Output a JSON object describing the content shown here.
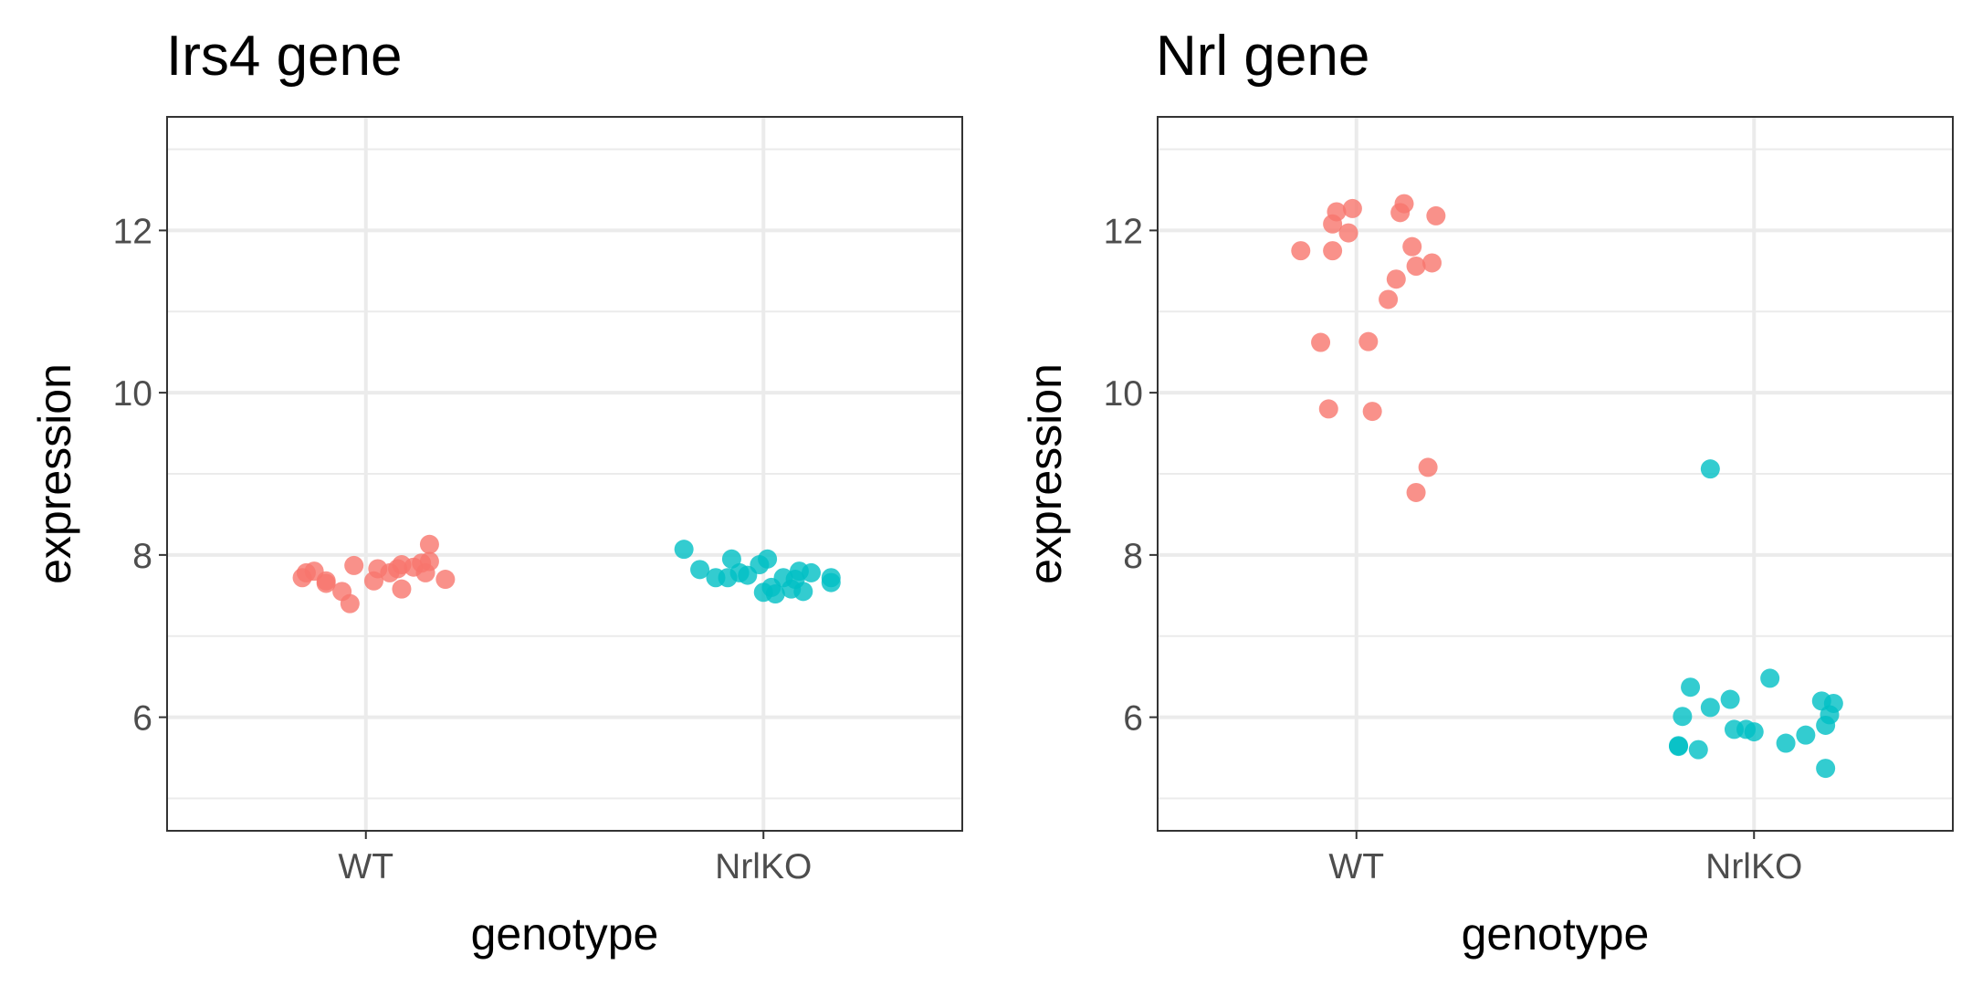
{
  "chart_data": [
    {
      "type": "scatter",
      "title": "Irs4 gene",
      "xlabel": "genotype",
      "ylabel": "expression",
      "categories": [
        "WT",
        "NrlKO"
      ],
      "ylim": [
        4.6,
        13.4
      ],
      "yticks": [
        6,
        8,
        10,
        12
      ],
      "grid": true,
      "legend": "none",
      "series": [
        {
          "category": "WT",
          "color": "#F8766D",
          "points": [
            {
              "x": -0.16,
              "y": 7.72
            },
            {
              "x": -0.15,
              "y": 7.78
            },
            {
              "x": -0.13,
              "y": 7.8
            },
            {
              "x": -0.1,
              "y": 7.65
            },
            {
              "x": -0.1,
              "y": 7.68
            },
            {
              "x": -0.06,
              "y": 7.55
            },
            {
              "x": -0.04,
              "y": 7.4
            },
            {
              "x": -0.03,
              "y": 7.87
            },
            {
              "x": 0.02,
              "y": 7.68
            },
            {
              "x": 0.03,
              "y": 7.83
            },
            {
              "x": 0.06,
              "y": 7.78
            },
            {
              "x": 0.08,
              "y": 7.83
            },
            {
              "x": 0.09,
              "y": 7.88
            },
            {
              "x": 0.09,
              "y": 7.58
            },
            {
              "x": 0.12,
              "y": 7.85
            },
            {
              "x": 0.14,
              "y": 7.9
            },
            {
              "x": 0.15,
              "y": 7.78
            },
            {
              "x": 0.16,
              "y": 7.92
            },
            {
              "x": 0.16,
              "y": 8.13
            },
            {
              "x": 0.2,
              "y": 7.7
            }
          ]
        },
        {
          "category": "NrlKO",
          "color": "#00BFC4",
          "points": [
            {
              "x": -0.2,
              "y": 8.07
            },
            {
              "x": -0.16,
              "y": 7.82
            },
            {
              "x": -0.12,
              "y": 7.72
            },
            {
              "x": -0.09,
              "y": 7.72
            },
            {
              "x": -0.08,
              "y": 7.95
            },
            {
              "x": -0.06,
              "y": 7.78
            },
            {
              "x": -0.04,
              "y": 7.75
            },
            {
              "x": -0.01,
              "y": 7.88
            },
            {
              "x": 0.0,
              "y": 7.54
            },
            {
              "x": 0.01,
              "y": 7.95
            },
            {
              "x": 0.02,
              "y": 7.6
            },
            {
              "x": 0.03,
              "y": 7.52
            },
            {
              "x": 0.05,
              "y": 7.72
            },
            {
              "x": 0.07,
              "y": 7.58
            },
            {
              "x": 0.08,
              "y": 7.7
            },
            {
              "x": 0.09,
              "y": 7.8
            },
            {
              "x": 0.1,
              "y": 7.55
            },
            {
              "x": 0.12,
              "y": 7.78
            },
            {
              "x": 0.17,
              "y": 7.72
            },
            {
              "x": 0.17,
              "y": 7.66
            }
          ]
        }
      ]
    },
    {
      "type": "scatter",
      "title": "Nrl gene",
      "xlabel": "genotype",
      "ylabel": "expression",
      "categories": [
        "WT",
        "NrlKO"
      ],
      "ylim": [
        4.6,
        13.4
      ],
      "yticks": [
        6,
        8,
        10,
        12
      ],
      "grid": true,
      "legend": "none",
      "series": [
        {
          "category": "WT",
          "color": "#F8766D",
          "points": [
            {
              "x": -0.14,
              "y": 11.75
            },
            {
              "x": -0.09,
              "y": 10.62
            },
            {
              "x": -0.07,
              "y": 9.8
            },
            {
              "x": -0.06,
              "y": 11.75
            },
            {
              "x": -0.06,
              "y": 12.08
            },
            {
              "x": -0.05,
              "y": 12.23
            },
            {
              "x": -0.02,
              "y": 11.97
            },
            {
              "x": -0.01,
              "y": 12.27
            },
            {
              "x": 0.03,
              "y": 10.63
            },
            {
              "x": 0.04,
              "y": 9.77
            },
            {
              "x": 0.08,
              "y": 11.15
            },
            {
              "x": 0.1,
              "y": 11.4
            },
            {
              "x": 0.11,
              "y": 12.22
            },
            {
              "x": 0.12,
              "y": 12.33
            },
            {
              "x": 0.14,
              "y": 11.8
            },
            {
              "x": 0.15,
              "y": 8.77
            },
            {
              "x": 0.15,
              "y": 11.56
            },
            {
              "x": 0.18,
              "y": 9.08
            },
            {
              "x": 0.19,
              "y": 11.6
            },
            {
              "x": 0.2,
              "y": 12.18
            }
          ]
        },
        {
          "category": "NrlKO",
          "color": "#00BFC4",
          "points": [
            {
              "x": -0.19,
              "y": 5.64
            },
            {
              "x": -0.19,
              "y": 5.65
            },
            {
              "x": -0.18,
              "y": 6.01
            },
            {
              "x": -0.16,
              "y": 6.37
            },
            {
              "x": -0.14,
              "y": 5.6
            },
            {
              "x": -0.11,
              "y": 6.12
            },
            {
              "x": -0.11,
              "y": 9.06
            },
            {
              "x": -0.06,
              "y": 6.22
            },
            {
              "x": -0.05,
              "y": 5.85
            },
            {
              "x": -0.02,
              "y": 5.85
            },
            {
              "x": 0.0,
              "y": 5.82
            },
            {
              "x": 0.04,
              "y": 6.48
            },
            {
              "x": 0.08,
              "y": 5.68
            },
            {
              "x": 0.13,
              "y": 5.78
            },
            {
              "x": 0.17,
              "y": 6.2
            },
            {
              "x": 0.18,
              "y": 5.9
            },
            {
              "x": 0.18,
              "y": 5.37
            },
            {
              "x": 0.19,
              "y": 6.03
            },
            {
              "x": 0.2,
              "y": 6.17
            }
          ]
        }
      ]
    }
  ]
}
